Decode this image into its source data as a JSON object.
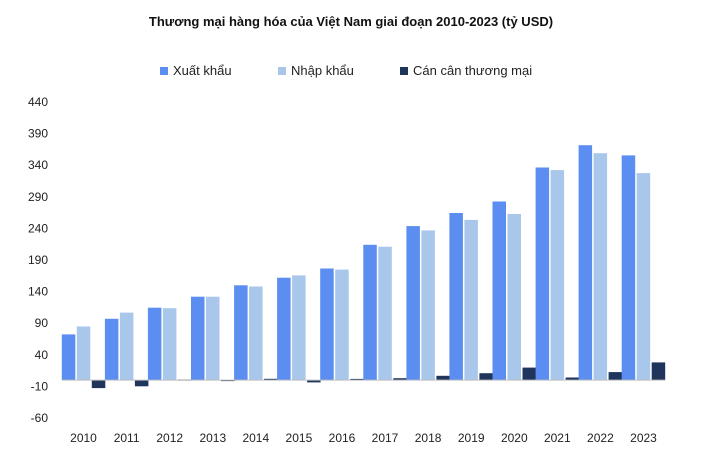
{
  "chart_data": {
    "type": "bar",
    "title": "Thương mại hàng hóa của Việt Nam giai đoạn 2010-2023 (tỷ USD)",
    "categories": [
      "2010",
      "2011",
      "2012",
      "2013",
      "2014",
      "2015",
      "2016",
      "2017",
      "2018",
      "2019",
      "2020",
      "2021",
      "2022",
      "2023"
    ],
    "series": [
      {
        "name": "Xuất khẩu",
        "color": "#5b8ef0",
        "values": [
          72.2,
          96.9,
          114.5,
          132.0,
          150.0,
          162.0,
          176.6,
          214.0,
          243.7,
          264.3,
          282.6,
          336.3,
          371.7,
          355.5
        ]
      },
      {
        "name": "Nhập khẩu",
        "color": "#a9c6eb",
        "values": [
          84.8,
          106.7,
          113.8,
          132.0,
          148.0,
          165.6,
          174.8,
          211.1,
          236.9,
          253.4,
          262.8,
          332.2,
          359.0,
          327.5
        ]
      },
      {
        "name": "Cán cân thương mại",
        "color": "#1f355c",
        "values": [
          -12.6,
          -9.8,
          0.7,
          0.0,
          2.0,
          -3.6,
          1.8,
          2.9,
          6.8,
          10.9,
          19.8,
          4.1,
          12.7,
          28.0
        ]
      }
    ],
    "ylim": [
      -60,
      440
    ],
    "yticks": [
      440,
      390,
      340,
      290,
      240,
      190,
      140,
      90,
      40,
      -10,
      -60
    ],
    "legend_position": "top",
    "grid": false
  }
}
